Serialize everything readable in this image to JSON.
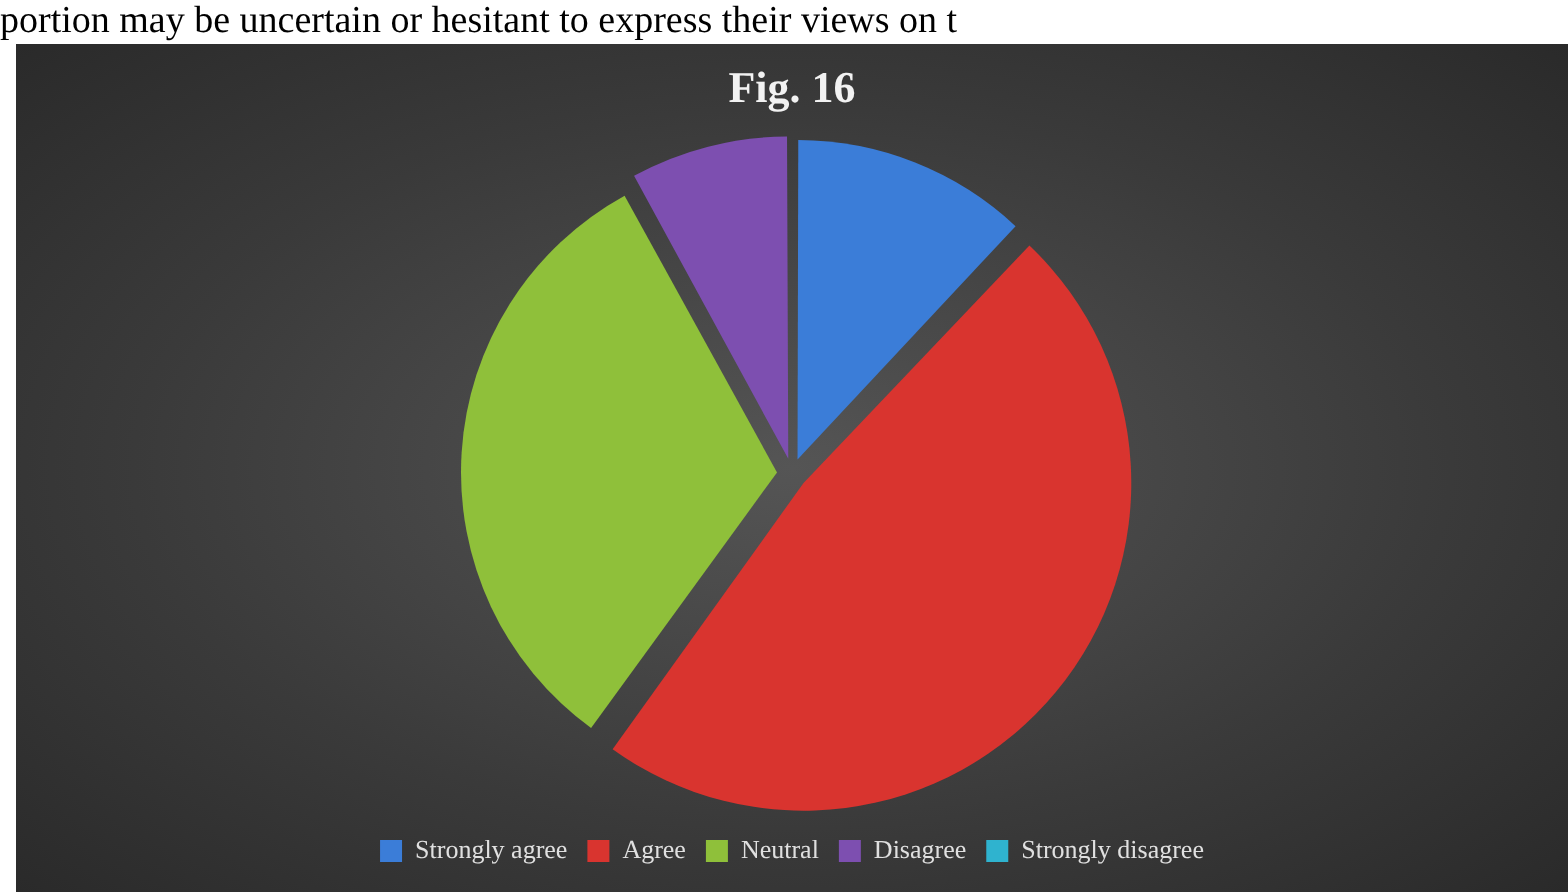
{
  "chart_data": {
    "type": "pie",
    "title": "Fig. 16",
    "annotations": [
      "portion may be uncertain or hesitant to express their views on t"
    ],
    "categories": [
      "Strongly agree",
      "Agree",
      "Neutral",
      "Disagree",
      "Strongly disagree"
    ],
    "values": [
      12,
      48,
      32,
      8,
      0
    ],
    "colors": [
      "#3b7dd8",
      "#d9342f",
      "#8fc03a",
      "#7d4fb0",
      "#2fb3cf"
    ],
    "legend": "bottom"
  }
}
